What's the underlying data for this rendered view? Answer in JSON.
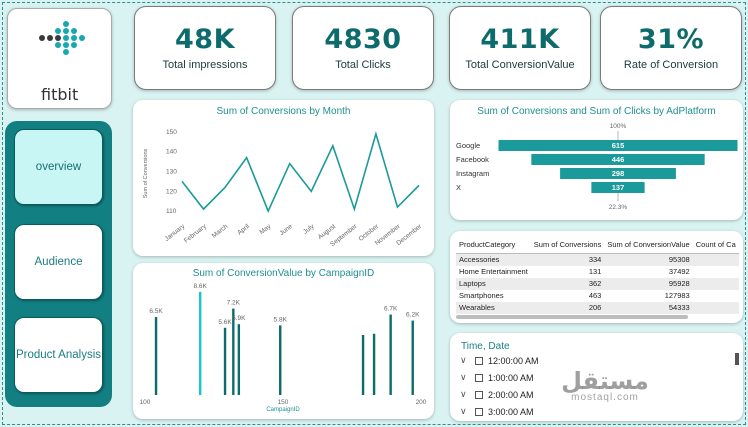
{
  "logo": {
    "text": "fitbit"
  },
  "nav": {
    "items": [
      {
        "label": "overview",
        "active": true
      },
      {
        "label": "Audience",
        "active": false
      },
      {
        "label": "Product Analysis",
        "active": false
      }
    ]
  },
  "kpis": [
    {
      "value": "48K",
      "label": "Total impressions"
    },
    {
      "value": "4830",
      "label": "Total Clicks"
    },
    {
      "value": "411K",
      "label": "Total ConversionValue"
    },
    {
      "value": "31%",
      "label": "Rate of Conversion"
    }
  ],
  "colors": {
    "accent": "#1a9a9a",
    "dark": "#0d6b6b",
    "highlight": "#17c6d1"
  },
  "line_chart": {
    "chart_data": {
      "type": "line",
      "title": "Sum of Conversions by Month",
      "ylabel": "Sum of Conversions",
      "xlabel": "",
      "categories": [
        "January",
        "February",
        "March",
        "April",
        "May",
        "June",
        "July",
        "August",
        "September",
        "October",
        "November",
        "December"
      ],
      "values": [
        125,
        111,
        122,
        137,
        110,
        134,
        120,
        143,
        111,
        149,
        112,
        123
      ],
      "yticks": [
        110,
        120,
        130,
        140,
        150
      ],
      "ylim": [
        105,
        153
      ]
    }
  },
  "funnel_chart": {
    "chart_data": {
      "type": "bar",
      "title": "Sum of Conversions and Sum of Clicks by AdPlatform",
      "categories": [
        "Google",
        "Facebook",
        "Instagram",
        "X"
      ],
      "values": [
        615,
        446,
        298,
        137
      ],
      "top_label": "100%",
      "bottom_label": "22.3%"
    }
  },
  "campaign_chart": {
    "chart_data": {
      "type": "bar",
      "title": "Sum of ConversionValue by CampaignID",
      "xlabel": "CampaignID",
      "xlim": [
        100,
        200
      ],
      "xticks": [
        100,
        150,
        200
      ],
      "bars": [
        {
          "x": 104,
          "value": 6.5,
          "label": "6.5K"
        },
        {
          "x": 120,
          "value": 8.6,
          "label": "8.6K",
          "highlight": true
        },
        {
          "x": 129,
          "value": 5.6,
          "label": "5.6K"
        },
        {
          "x": 132,
          "value": 7.2,
          "label": "7.2K"
        },
        {
          "x": 134,
          "value": 5.9,
          "label": "5.9K"
        },
        {
          "x": 149,
          "value": 5.8,
          "label": "5.8K"
        },
        {
          "x": 179,
          "value": 5.0,
          "label": ""
        },
        {
          "x": 183,
          "value": 5.1,
          "label": ""
        },
        {
          "x": 189,
          "value": 6.7,
          "label": "6.7K"
        },
        {
          "x": 197,
          "value": 6.2,
          "label": "6.2K"
        }
      ],
      "ylim": [
        0,
        9.5
      ]
    }
  },
  "table": {
    "headers": [
      "ProductCategory",
      "Sum of Conversions",
      "Sum of ConversionValue",
      "Count of Ca"
    ],
    "rows": [
      [
        "Accessories",
        "334",
        "95308",
        ""
      ],
      [
        "Home Entertainment",
        "131",
        "37492",
        ""
      ],
      [
        "Laptops",
        "362",
        "95928",
        ""
      ],
      [
        "Smartphones",
        "463",
        "127983",
        ""
      ],
      [
        "Wearables",
        "206",
        "54333",
        ""
      ]
    ]
  },
  "slicer": {
    "title": "Time, Date",
    "items": [
      "12:00:00 AM",
      "1:00:00 AM",
      "2:00:00 AM",
      "3:00:00 AM"
    ]
  },
  "watermark": {
    "line1": "مستقل",
    "line2": "mostaql.com"
  }
}
